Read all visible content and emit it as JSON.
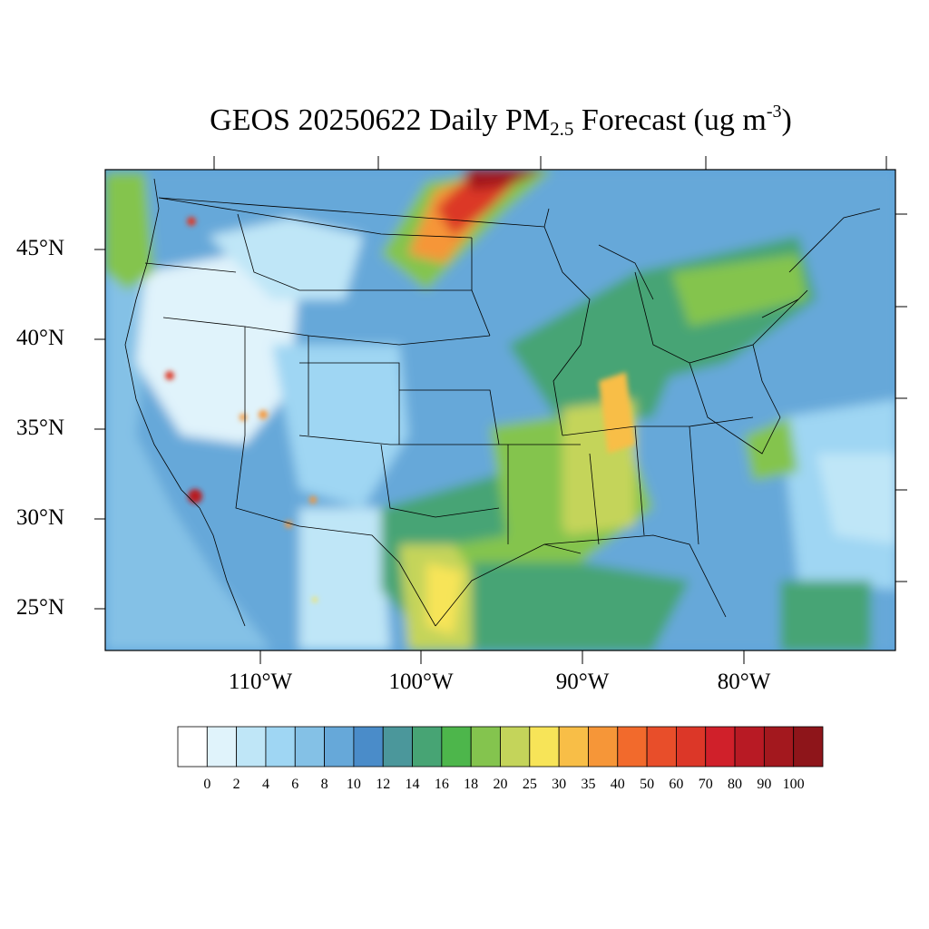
{
  "title": {
    "prefix": "GEOS 20250622 Daily PM",
    "subscript": "2.5",
    "middle": " Forecast (ug m",
    "superscript": "-3",
    "suffix": ")"
  },
  "lat_labels": [
    "45°N",
    "40°N",
    "35°N",
    "30°N",
    "25°N"
  ],
  "lon_labels": [
    "110°W",
    "100°W",
    "90°W",
    "80°W"
  ],
  "colorbar": {
    "labels": [
      "0",
      "2",
      "4",
      "6",
      "8",
      "10",
      "12",
      "14",
      "16",
      "18",
      "20",
      "25",
      "30",
      "35",
      "40",
      "50",
      "60",
      "70",
      "80",
      "90",
      "100"
    ],
    "colors": [
      "#ffffff",
      "#e0f3fb",
      "#bfe6f7",
      "#9fd6f3",
      "#84c1e6",
      "#66a8d9",
      "#4a8cc9",
      "#4b979b",
      "#47a474",
      "#4db64b",
      "#84c44e",
      "#c4d45a",
      "#f7e458",
      "#f8be47",
      "#f69638",
      "#f26a2c",
      "#e84e2a",
      "#dc3728",
      "#d0202a",
      "#b81a24",
      "#a3181e",
      "#8e151a"
    ]
  },
  "colors": {
    "land_base": "#6ab0e0",
    "ocean": "#5aa2dc",
    "border": "#000000"
  }
}
